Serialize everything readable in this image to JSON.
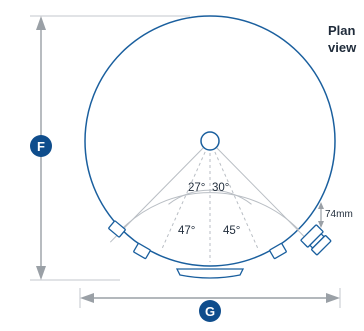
{
  "view": {
    "title_lines": [
      "Plan",
      "view"
    ]
  },
  "dimensions": {
    "height_badge": "F",
    "width_badge": "G",
    "depth_label": "74mm"
  },
  "angles": {
    "inner_left": "27°",
    "inner_right": "30°",
    "outer_left": "47°",
    "outer_right": "45°"
  },
  "colors": {
    "outline": "#1a5f9e",
    "badge": "#0f4d8c",
    "guide": "#b9bec4",
    "dimension": "#9aa0a6",
    "text": "#1f2b3a"
  }
}
